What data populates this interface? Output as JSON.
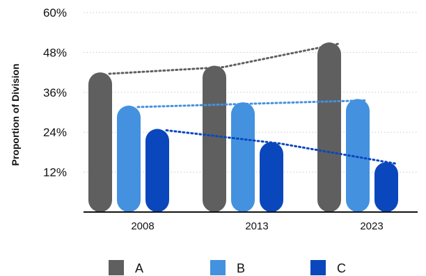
{
  "chart_data": {
    "type": "bar",
    "categories": [
      "2008",
      "2013",
      "2023"
    ],
    "series": [
      {
        "name": "A",
        "values": [
          42,
          44,
          51
        ],
        "color": "#5f5f5f"
      },
      {
        "name": "B",
        "values": [
          32,
          33,
          34
        ],
        "color": "#4491e0"
      },
      {
        "name": "C",
        "values": [
          25,
          21,
          15
        ],
        "color": "#0a47bd"
      }
    ],
    "title": "",
    "xlabel": "",
    "ylabel": "Proportion of Division",
    "ylim": [
      0,
      60
    ],
    "yticks": [
      "60%",
      "48%",
      "36%",
      "24%",
      "12%"
    ],
    "ytick_values": [
      60,
      48,
      36,
      24,
      12
    ],
    "grid": "horizontal dotted",
    "legend": "bottom",
    "trend_lines": "dotted lines connecting each series across categories"
  }
}
